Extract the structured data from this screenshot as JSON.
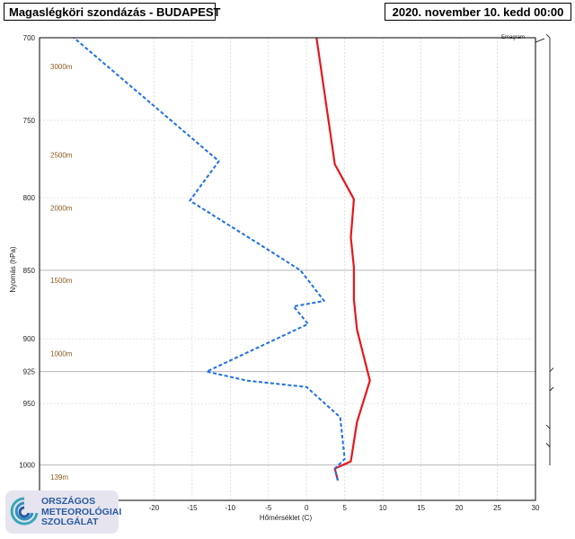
{
  "header": {
    "title": "Magaslégköri szondázás - BUDAPEST",
    "datetime": "2020. november 10. kedd 00:00"
  },
  "logo": {
    "line1": "ORSZÁGOS",
    "line2": "METEOROLÓGIAI",
    "line3": "SZOLGÁLAT"
  },
  "chart_data": {
    "type": "line",
    "subtype": "emagram",
    "emagram_label": "Emagram",
    "xlabel": "Hőmérséklet (C)",
    "ylabel": "Nyomás (hPa)",
    "xlim": [
      -35,
      30
    ],
    "ylim": [
      1030,
      700
    ],
    "y_scale": "log",
    "x_ticks": [
      -20,
      -15,
      -10,
      -5,
      0,
      5,
      10,
      15,
      20,
      25,
      30
    ],
    "y_ticks": [
      700,
      750,
      800,
      850,
      900,
      925,
      950,
      1000
    ],
    "height_labels": [
      {
        "text": "3000m",
        "p": 717
      },
      {
        "text": "2500m",
        "p": 772
      },
      {
        "text": "2000m",
        "p": 807
      },
      {
        "text": "1500m",
        "p": 857
      },
      {
        "text": "1000m",
        "p": 911
      },
      {
        "text": "139m",
        "p": 1010
      }
    ],
    "series": [
      {
        "name": "",
        "role": "temperature",
        "color": "#e8161c",
        "style": "solid",
        "points": [
          [
            4.1,
            1013
          ],
          [
            3.7,
            1003
          ],
          [
            5.8,
            997
          ],
          [
            6.6,
            965
          ],
          [
            8.3,
            932
          ],
          [
            6.6,
            893
          ],
          [
            6.2,
            871
          ],
          [
            6.2,
            848
          ],
          [
            5.8,
            827
          ],
          [
            6.2,
            801
          ],
          [
            3.7,
            778
          ],
          [
            1.3,
            700
          ]
        ]
      },
      {
        "name": "",
        "role": "dewpoint",
        "color": "#1f6fe8",
        "style": "dashed",
        "points": [
          [
            4.1,
            1013
          ],
          [
            3.7,
            1003
          ],
          [
            5,
            995
          ],
          [
            4.4,
            961
          ],
          [
            0,
            937
          ],
          [
            -7.8,
            932
          ],
          [
            -13.1,
            925
          ],
          [
            0.2,
            889
          ],
          [
            -1.7,
            876
          ],
          [
            2.3,
            872
          ],
          [
            -0.8,
            850
          ],
          [
            -6.7,
            830
          ],
          [
            -15.3,
            802
          ],
          [
            -11.5,
            776
          ],
          [
            -30.5,
            700
          ]
        ]
      }
    ],
    "grid": true,
    "legend": "none"
  }
}
